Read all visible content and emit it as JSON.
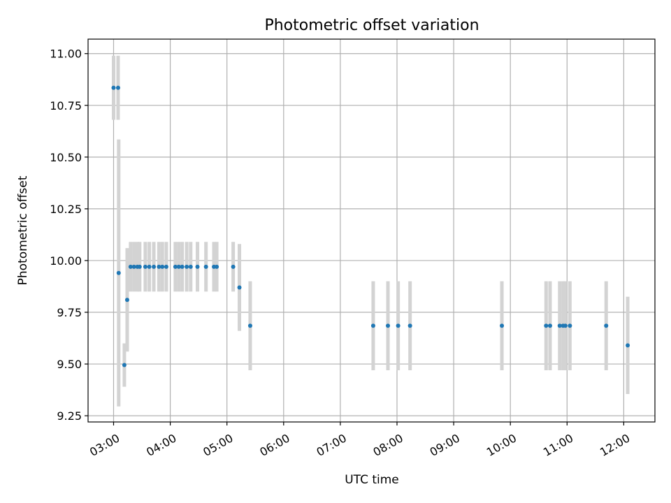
{
  "chart_data": {
    "type": "scatter",
    "title": "Photometric offset variation",
    "xlabel": "UTC time",
    "ylabel": "Photometric offset",
    "x_unit": "hours",
    "xlim": [
      2.55,
      12.55
    ],
    "ylim": [
      9.22,
      11.07
    ],
    "x_ticks": [
      {
        "value": 3,
        "label": "03:00"
      },
      {
        "value": 4,
        "label": "04:00"
      },
      {
        "value": 5,
        "label": "05:00"
      },
      {
        "value": 6,
        "label": "06:00"
      },
      {
        "value": 7,
        "label": "07:00"
      },
      {
        "value": 8,
        "label": "08:00"
      },
      {
        "value": 9,
        "label": "09:00"
      },
      {
        "value": 10,
        "label": "10:00"
      },
      {
        "value": 11,
        "label": "11:00"
      },
      {
        "value": 12,
        "label": "12:00"
      }
    ],
    "y_ticks": [
      {
        "value": 9.25,
        "label": "9.25"
      },
      {
        "value": 9.5,
        "label": "9.50"
      },
      {
        "value": 9.75,
        "label": "9.75"
      },
      {
        "value": 10.0,
        "label": "10.00"
      },
      {
        "value": 10.25,
        "label": "10.25"
      },
      {
        "value": 10.5,
        "label": "10.50"
      },
      {
        "value": 10.75,
        "label": "10.75"
      },
      {
        "value": 11.0,
        "label": "11.00"
      }
    ],
    "grid": true,
    "point_color": "#1f77b4",
    "errorbar_color": "#d3d3d3",
    "points": [
      {
        "x": 3.0,
        "y": 10.835,
        "err": 0.155
      },
      {
        "x": 3.08,
        "y": 10.835,
        "err": 0.155
      },
      {
        "x": 3.09,
        "y": 9.94,
        "err": 0.645
      },
      {
        "x": 3.19,
        "y": 9.495,
        "err": 0.105
      },
      {
        "x": 3.24,
        "y": 9.81,
        "err": 0.25
      },
      {
        "x": 3.3,
        "y": 9.97,
        "err": 0.12
      },
      {
        "x": 3.36,
        "y": 9.97,
        "err": 0.12
      },
      {
        "x": 3.42,
        "y": 9.97,
        "err": 0.12
      },
      {
        "x": 3.46,
        "y": 9.97,
        "err": 0.12
      },
      {
        "x": 3.56,
        "y": 9.97,
        "err": 0.12
      },
      {
        "x": 3.63,
        "y": 9.97,
        "err": 0.12
      },
      {
        "x": 3.71,
        "y": 9.97,
        "err": 0.12
      },
      {
        "x": 3.8,
        "y": 9.97,
        "err": 0.12
      },
      {
        "x": 3.86,
        "y": 9.97,
        "err": 0.12
      },
      {
        "x": 3.93,
        "y": 9.97,
        "err": 0.12
      },
      {
        "x": 4.09,
        "y": 9.97,
        "err": 0.12
      },
      {
        "x": 4.15,
        "y": 9.97,
        "err": 0.12
      },
      {
        "x": 4.21,
        "y": 9.97,
        "err": 0.12
      },
      {
        "x": 4.29,
        "y": 9.97,
        "err": 0.12
      },
      {
        "x": 4.36,
        "y": 9.97,
        "err": 0.12
      },
      {
        "x": 4.48,
        "y": 9.97,
        "err": 0.12
      },
      {
        "x": 4.63,
        "y": 9.97,
        "err": 0.12
      },
      {
        "x": 4.77,
        "y": 9.97,
        "err": 0.12
      },
      {
        "x": 4.82,
        "y": 9.97,
        "err": 0.12
      },
      {
        "x": 5.11,
        "y": 9.97,
        "err": 0.12
      },
      {
        "x": 5.22,
        "y": 9.87,
        "err": 0.21
      },
      {
        "x": 5.41,
        "y": 9.685,
        "err": 0.215
      },
      {
        "x": 7.58,
        "y": 9.685,
        "err": 0.215
      },
      {
        "x": 7.84,
        "y": 9.685,
        "err": 0.215
      },
      {
        "x": 8.02,
        "y": 9.685,
        "err": 0.215
      },
      {
        "x": 8.23,
        "y": 9.685,
        "err": 0.215
      },
      {
        "x": 9.85,
        "y": 9.685,
        "err": 0.215
      },
      {
        "x": 10.63,
        "y": 9.685,
        "err": 0.215
      },
      {
        "x": 10.7,
        "y": 9.685,
        "err": 0.215
      },
      {
        "x": 10.87,
        "y": 9.685,
        "err": 0.215
      },
      {
        "x": 10.93,
        "y": 9.685,
        "err": 0.215
      },
      {
        "x": 10.97,
        "y": 9.685,
        "err": 0.215
      },
      {
        "x": 11.05,
        "y": 9.685,
        "err": 0.215
      },
      {
        "x": 11.69,
        "y": 9.685,
        "err": 0.215
      },
      {
        "x": 12.07,
        "y": 9.59,
        "err": 0.235
      }
    ]
  }
}
